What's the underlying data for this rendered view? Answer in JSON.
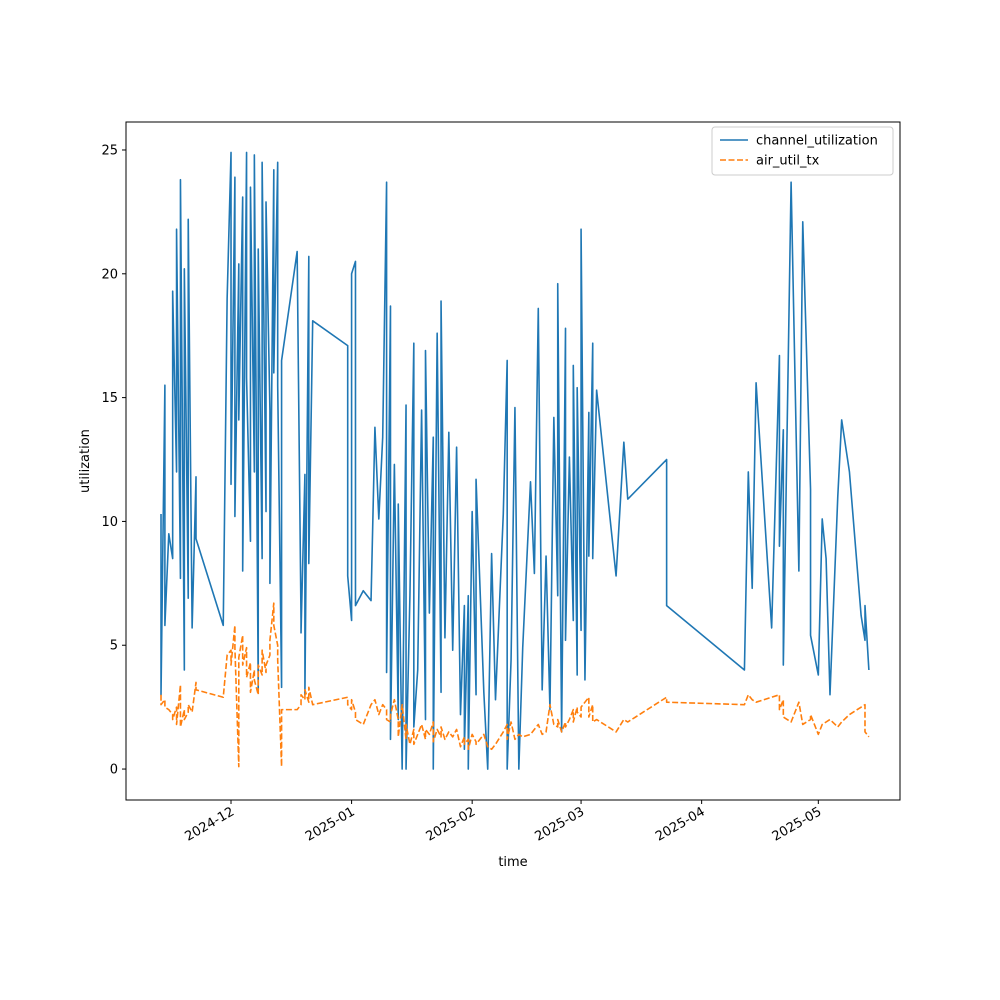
{
  "chart_data": {
    "type": "line",
    "xlabel": "time",
    "ylabel": "utilization",
    "legend": "upper right",
    "xlim": [
      "2024-11-04",
      "2025-05-22"
    ],
    "xticks": [
      {
        "value": "2024-12-01",
        "label": "2024-12"
      },
      {
        "value": "2025-01-01",
        "label": "2025-01"
      },
      {
        "value": "2025-02-01",
        "label": "2025-02"
      },
      {
        "value": "2025-03-01",
        "label": "2025-03"
      },
      {
        "value": "2025-04-01",
        "label": "2025-04"
      },
      {
        "value": "2025-05-01",
        "label": "2025-05"
      }
    ],
    "ylim": [
      -1.25,
      26.13
    ],
    "yticks": [
      0,
      5,
      10,
      15,
      20,
      25
    ],
    "x": [
      "2024-11-13",
      "2024-11-13",
      "2024-11-14",
      "2024-11-14",
      "2024-11-15",
      "2024-11-16",
      "2024-11-16",
      "2024-11-17",
      "2024-11-17",
      "2024-11-18",
      "2024-11-18",
      "2024-11-19",
      "2024-11-19",
      "2024-11-20",
      "2024-11-20",
      "2024-11-21",
      "2024-11-22",
      "2024-11-22",
      "2024-11-29",
      "2024-11-30",
      "2024-12-01",
      "2024-12-01",
      "2024-12-02",
      "2024-12-02",
      "2024-12-03",
      "2024-12-03",
      "2024-12-04",
      "2024-12-04",
      "2024-12-05",
      "2024-12-05",
      "2024-12-06",
      "2024-12-06",
      "2024-12-07",
      "2024-12-07",
      "2024-12-08",
      "2024-12-08",
      "2024-12-09",
      "2024-12-09",
      "2024-12-10",
      "2024-12-10",
      "2024-12-11",
      "2024-12-11",
      "2024-12-12",
      "2024-12-12",
      "2024-12-13",
      "2024-12-13",
      "2024-12-14",
      "2024-12-14",
      "2024-12-18",
      "2024-12-19",
      "2024-12-19",
      "2024-12-20",
      "2024-12-20",
      "2024-12-21",
      "2024-12-21",
      "2024-12-22",
      "2024-12-31",
      "2024-12-31",
      "2025-01-01",
      "2025-01-01",
      "2025-01-02",
      "2025-01-02",
      "2025-01-04",
      "2025-01-06",
      "2025-01-07",
      "2025-01-08",
      "2025-01-09",
      "2025-01-10",
      "2025-01-10",
      "2025-01-11",
      "2025-01-11",
      "2025-01-12",
      "2025-01-13",
      "2025-01-13",
      "2025-01-14",
      "2025-01-15",
      "2025-01-15",
      "2025-01-16",
      "2025-01-17",
      "2025-01-17",
      "2025-01-18",
      "2025-01-19",
      "2025-01-20",
      "2025-01-20",
      "2025-01-21",
      "2025-01-22",
      "2025-01-22",
      "2025-01-23",
      "2025-01-24",
      "2025-01-24",
      "2025-01-25",
      "2025-01-26",
      "2025-01-27",
      "2025-01-28",
      "2025-01-29",
      "2025-01-30",
      "2025-01-30",
      "2025-01-31",
      "2025-01-31",
      "2025-02-01",
      "2025-02-02",
      "2025-02-02",
      "2025-02-04",
      "2025-02-05",
      "2025-02-06",
      "2025-02-07",
      "2025-02-09",
      "2025-02-10",
      "2025-02-10",
      "2025-02-11",
      "2025-02-12",
      "2025-02-13",
      "2025-02-14",
      "2025-02-16",
      "2025-02-17",
      "2025-02-18",
      "2025-02-19",
      "2025-02-20",
      "2025-02-21",
      "2025-02-22",
      "2025-02-23",
      "2025-02-23",
      "2025-02-24",
      "2025-02-25",
      "2025-02-25",
      "2025-02-26",
      "2025-02-27",
      "2025-02-27",
      "2025-02-28",
      "2025-02-28",
      "2025-03-01",
      "2025-03-01",
      "2025-03-02",
      "2025-03-03",
      "2025-03-03",
      "2025-03-04",
      "2025-03-04",
      "2025-03-05",
      "2025-03-10",
      "2025-03-12",
      "2025-03-13",
      "2025-03-23",
      "2025-03-23",
      "2025-04-12",
      "2025-04-13",
      "2025-04-14",
      "2025-04-15",
      "2025-04-19",
      "2025-04-21",
      "2025-04-21",
      "2025-04-22",
      "2025-04-22",
      "2025-04-24",
      "2025-04-26",
      "2025-04-27",
      "2025-04-29",
      "2025-04-29",
      "2025-05-01",
      "2025-05-02",
      "2025-05-03",
      "2025-05-04",
      "2025-05-06",
      "2025-05-07",
      "2025-05-09",
      "2025-05-12",
      "2025-05-13",
      "2025-05-13",
      "2025-05-14"
    ],
    "series": [
      {
        "name": "channel_utilization",
        "color": "#1f77b4",
        "linestyle": "solid",
        "values": [
          10.3,
          3.0,
          15.5,
          5.8,
          9.5,
          8.5,
          19.3,
          12.0,
          21.8,
          7.7,
          23.8,
          4.0,
          20.2,
          6.9,
          22.2,
          5.7,
          11.8,
          9.3,
          5.8,
          19.0,
          24.9,
          11.5,
          23.9,
          10.2,
          20.4,
          14.1,
          23.1,
          8.0,
          24.9,
          15.8,
          9.2,
          23.5,
          12.0,
          24.8,
          3.2,
          21.0,
          8.5,
          24.5,
          10.4,
          22.9,
          14.5,
          7.5,
          24.2,
          16.0,
          24.5,
          15.5,
          3.3,
          16.5,
          20.9,
          6.0,
          5.5,
          11.9,
          3.0,
          20.7,
          8.3,
          18.1,
          17.1,
          7.8,
          6.0,
          20.0,
          20.5,
          6.6,
          7.2,
          6.8,
          13.8,
          10.1,
          13.4,
          23.7,
          3.9,
          18.7,
          1.2,
          12.3,
          2.0,
          10.7,
          0.0,
          14.7,
          0.0,
          7.0,
          17.2,
          1.7,
          4.0,
          14.5,
          2.0,
          16.9,
          6.3,
          13.4,
          0.0,
          17.6,
          3.1,
          18.9,
          5.3,
          13.6,
          4.8,
          13.0,
          2.2,
          6.6,
          0.8,
          7.0,
          0.0,
          10.4,
          3.0,
          11.7,
          3.1,
          0.0,
          8.7,
          2.8,
          10.3,
          16.5,
          0.0,
          4.4,
          14.6,
          0.0,
          4.9,
          11.6,
          7.9,
          18.6,
          3.2,
          8.6,
          2.4,
          14.2,
          7.0,
          19.6,
          1.5,
          17.8,
          5.2,
          12.6,
          6.0,
          16.3,
          3.8,
          15.4,
          5.6,
          21.8,
          3.6,
          14.4,
          8.6,
          17.2,
          8.5,
          15.3,
          7.8,
          13.2,
          10.9,
          12.5,
          6.6,
          4.0,
          12.0,
          7.3,
          15.6,
          5.7,
          16.7,
          9.0,
          13.7,
          4.2,
          23.7,
          8.0,
          22.1,
          11.3,
          5.4,
          3.8,
          10.1,
          8.5,
          3.0,
          11.0,
          14.1,
          12.0,
          6.2,
          5.2,
          6.6,
          4.0
        ]
      },
      {
        "name": "air_util_tx",
        "color": "#ff7f0e",
        "linestyle": "dashed",
        "values": [
          3.0,
          2.6,
          2.8,
          2.5,
          2.4,
          2.2,
          2.0,
          2.5,
          1.8,
          3.4,
          1.7,
          2.4,
          2.0,
          2.3,
          2.6,
          2.3,
          3.5,
          3.2,
          2.9,
          4.6,
          4.8,
          4.2,
          5.8,
          4.9,
          0.1,
          4.5,
          5.4,
          4.2,
          4.9,
          3.7,
          4.3,
          3.1,
          4.0,
          3.6,
          3.0,
          4.2,
          3.8,
          4.8,
          3.9,
          4.2,
          4.6,
          5.2,
          6.7,
          5.8,
          5.0,
          4.4,
          0.1,
          2.4,
          2.4,
          2.6,
          3.0,
          2.8,
          3.2,
          2.7,
          3.3,
          2.6,
          2.9,
          2.6,
          2.4,
          2.8,
          2.3,
          2.0,
          1.8,
          2.6,
          2.8,
          2.2,
          2.6,
          2.4,
          2.0,
          1.9,
          2.2,
          2.8,
          2.0,
          1.3,
          2.6,
          1.2,
          1.8,
          1.0,
          1.6,
          1.0,
          1.4,
          1.8,
          1.2,
          1.6,
          1.4,
          1.9,
          1.1,
          1.6,
          1.3,
          1.7,
          1.2,
          1.5,
          1.3,
          1.6,
          0.9,
          1.3,
          1.0,
          1.2,
          0.8,
          1.4,
          1.1,
          1.0,
          1.4,
          0.9,
          0.8,
          1.0,
          1.5,
          1.8,
          1.2,
          1.9,
          1.2,
          1.4,
          1.3,
          1.4,
          1.6,
          1.8,
          1.4,
          1.5,
          2.6,
          1.8,
          1.7,
          2.0,
          1.5,
          1.9,
          1.7,
          2.0,
          2.4,
          1.9,
          2.5,
          2.3,
          2.1,
          2.5,
          2.7,
          2.9,
          2.1,
          2.6,
          1.9,
          2.0,
          1.5,
          2.0,
          1.9,
          2.9,
          2.7,
          2.6,
          3.0,
          2.8,
          2.7,
          2.9,
          3.0,
          2.4,
          2.8,
          2.1,
          1.9,
          2.7,
          1.8,
          2.0,
          2.2,
          1.4,
          1.8,
          1.9,
          2.0,
          1.7,
          1.9,
          2.2,
          2.5,
          2.6,
          1.5,
          1.3
        ]
      }
    ]
  }
}
